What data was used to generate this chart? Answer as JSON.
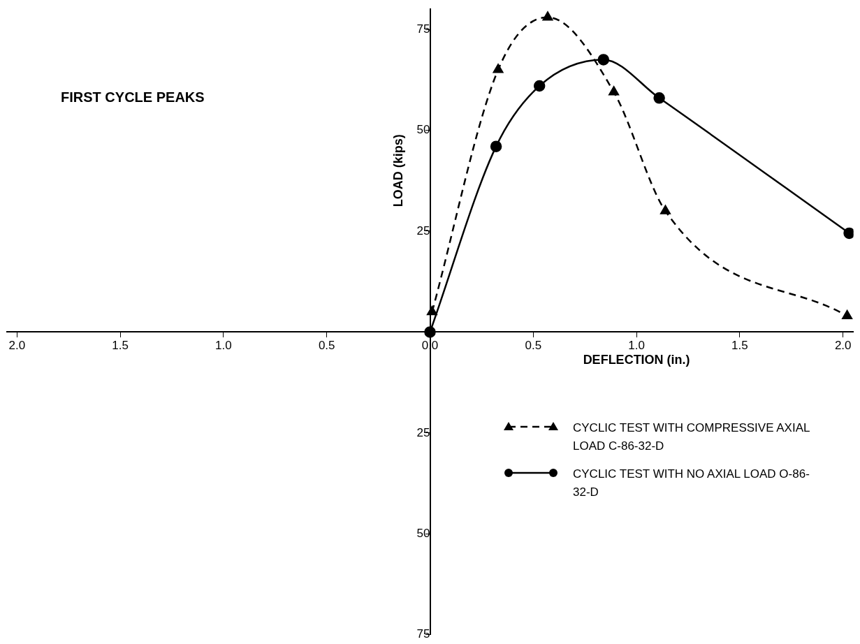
{
  "chart_data": {
    "type": "line",
    "title": "FIRST CYCLE PEAKS",
    "xlabel": "DEFLECTION (in.)",
    "ylabel": "LOAD (kips)",
    "xlim": [
      -2.05,
      2.05
    ],
    "ylim": [
      -75,
      80
    ],
    "xticks": [
      {
        "value": -2,
        "label": "2.0"
      },
      {
        "value": -1.5,
        "label": "1.5"
      },
      {
        "value": -1,
        "label": "1.0"
      },
      {
        "value": -0.5,
        "label": "0.5"
      },
      {
        "value": 0,
        "label": "0.0"
      },
      {
        "value": 0.5,
        "label": "0.5"
      },
      {
        "value": 1,
        "label": "1.0"
      },
      {
        "value": 1.5,
        "label": "1.5"
      },
      {
        "value": 2,
        "label": "2.0"
      }
    ],
    "yticks": [
      {
        "value": -75,
        "label": "75"
      },
      {
        "value": -50,
        "label": "50"
      },
      {
        "value": -25,
        "label": "25"
      },
      {
        "value": 25,
        "label": "25"
      },
      {
        "value": 50,
        "label": "50"
      },
      {
        "value": 75,
        "label": "75"
      }
    ],
    "grid": false,
    "legend": "bottom right",
    "series": [
      {
        "name": "CYCLIC TEST WITH COMPRESSIVE AXIAL LOAD C-86-32-D",
        "color": "#000000",
        "marker": "triangle",
        "line_style": "dashed",
        "x": [
          0.01,
          0.33,
          0.57,
          0.89,
          1.14,
          2.02
        ],
        "values": [
          5,
          65,
          78,
          59.5,
          30,
          4
        ]
      },
      {
        "name": "CYCLIC TEST WITH NO AXIAL LOAD O-86-32-D",
        "color": "#000000",
        "marker": "circle",
        "line_style": "solid",
        "x": [
          0,
          0.32,
          0.53,
          0.84,
          1.11,
          2.03
        ],
        "values": [
          0,
          46,
          61,
          67.5,
          58,
          24.5
        ]
      }
    ]
  }
}
